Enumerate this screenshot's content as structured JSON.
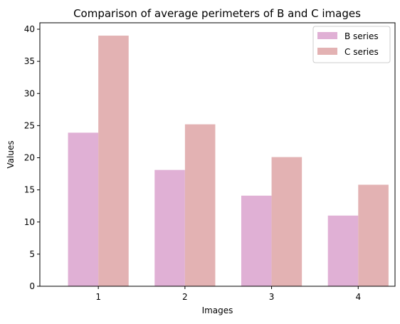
{
  "chart_data": {
    "type": "bar",
    "title": "Comparison of average perimeters of B and C images",
    "xlabel": "Images",
    "ylabel": "Values",
    "categories": [
      "1",
      "2",
      "3",
      "4"
    ],
    "ylim": [
      0,
      41
    ],
    "yticks": [
      0,
      5,
      10,
      15,
      20,
      25,
      30,
      35,
      40
    ],
    "grid": false,
    "legend_position": "top-right",
    "series": [
      {
        "name": "B series",
        "values": [
          23.9,
          18.1,
          14.1,
          11.0
        ],
        "color": "#e0b0d5"
      },
      {
        "name": "C series",
        "values": [
          39.0,
          25.2,
          20.1,
          15.8
        ],
        "color": "#e3b2b3"
      }
    ]
  }
}
